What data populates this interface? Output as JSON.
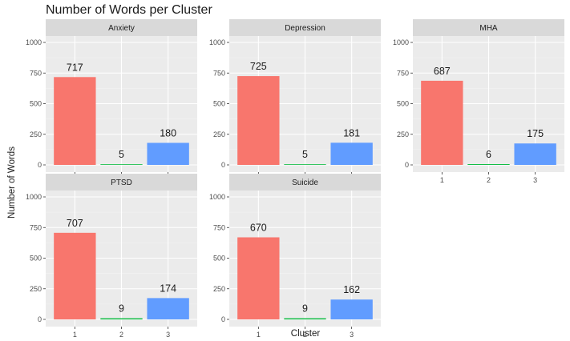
{
  "chart_data": {
    "type": "bar",
    "title": "Number of Words per Cluster",
    "xlabel": "Cluster",
    "ylabel": "Number of Words",
    "categories": [
      "1",
      "2",
      "3"
    ],
    "ylim": [
      0,
      1000
    ],
    "yticks": [
      0,
      250,
      500,
      750,
      1000
    ],
    "grid": true,
    "colors": [
      "#F8766D",
      "#00BA38",
      "#619CFF"
    ],
    "panels": [
      {
        "name": "Anxiety",
        "values": [
          717,
          5,
          180
        ]
      },
      {
        "name": "Depression",
        "values": [
          725,
          5,
          181
        ]
      },
      {
        "name": "MHA",
        "values": [
          687,
          6,
          175
        ]
      },
      {
        "name": "PTSD",
        "values": [
          707,
          9,
          174
        ]
      },
      {
        "name": "Suicide",
        "values": [
          670,
          9,
          162
        ]
      }
    ]
  }
}
